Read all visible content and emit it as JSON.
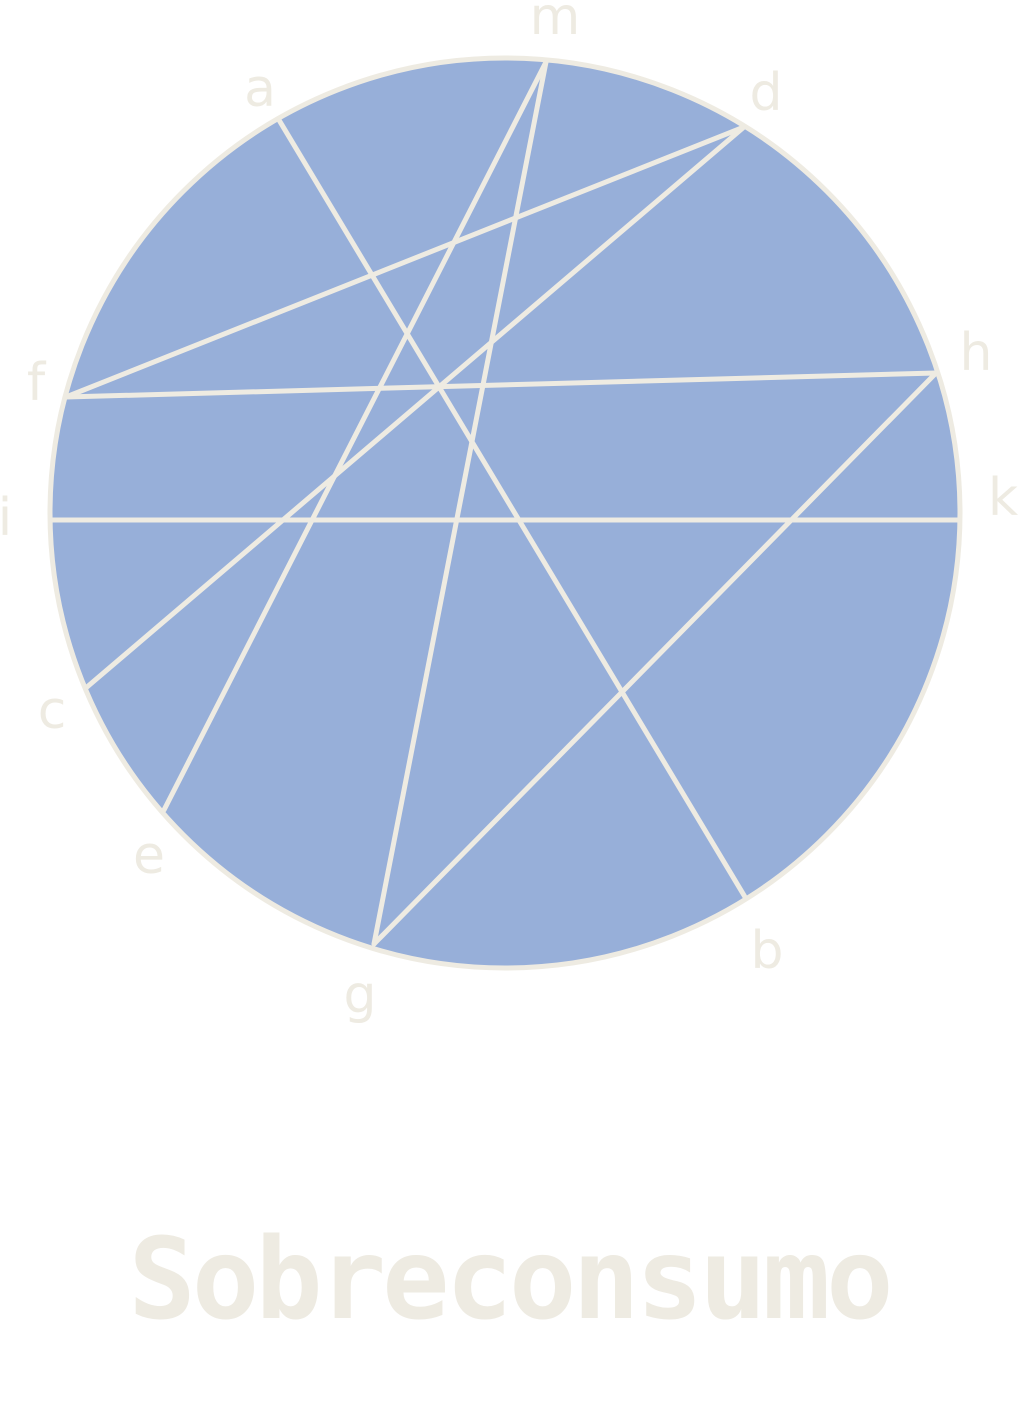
{
  "colors": {
    "disc_fill": "#97afd9",
    "stroke": "#eeebe2",
    "text": "#eeebe2",
    "background": "#ffffff"
  },
  "points": [
    {
      "id": "m",
      "label": "m"
    },
    {
      "id": "a",
      "label": "a"
    },
    {
      "id": "d",
      "label": "d"
    },
    {
      "id": "h",
      "label": "h"
    },
    {
      "id": "f",
      "label": "f"
    },
    {
      "id": "i",
      "label": "i"
    },
    {
      "id": "k",
      "label": "k"
    },
    {
      "id": "c",
      "label": "c"
    },
    {
      "id": "e",
      "label": "e"
    },
    {
      "id": "g",
      "label": "g"
    },
    {
      "id": "b",
      "label": "b"
    }
  ],
  "chords": [
    {
      "from": "a",
      "to": "b"
    },
    {
      "from": "m",
      "to": "e"
    },
    {
      "from": "m",
      "to": "g"
    },
    {
      "from": "d",
      "to": "c"
    },
    {
      "from": "d",
      "to": "f"
    },
    {
      "from": "f",
      "to": "h"
    },
    {
      "from": "i",
      "to": "k"
    },
    {
      "from": "h",
      "to": "g"
    }
  ],
  "title": "Sobreconsumo"
}
